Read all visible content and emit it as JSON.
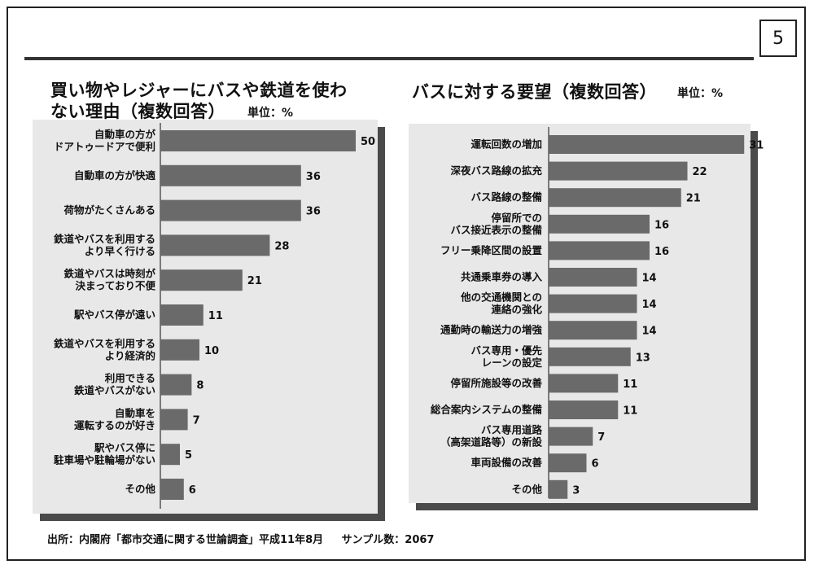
{
  "page_number": "5",
  "left_chart": {
    "title_line1": "買い物やレジャーにバスや鉄道を使わ",
    "title_line2": "ない理由（複数回答）",
    "unit": "単位：%"
  },
  "right_chart": {
    "title": "バスに対する要望（複数回答）",
    "unit": "単位：%"
  },
  "source": {
    "citation": "出所：内閣府「都市交通に関する世論調査」平成11年8月",
    "sample": "サンプル数：2067"
  },
  "chart_data": [
    {
      "type": "bar",
      "orientation": "horizontal",
      "title": "買い物やレジャーにバスや鉄道を使わない理由（複数回答）",
      "unit": "%",
      "categories": [
        [
          "自動車の方が",
          "ドアトゥードアで便利"
        ],
        [
          "自動車の方が快適"
        ],
        [
          "荷物がたくさんある"
        ],
        [
          "鉄道やバスを利用する",
          "より早く行ける"
        ],
        [
          "鉄道やバスは時刻が",
          "決まっており不便"
        ],
        [
          "駅やバス停が遠い"
        ],
        [
          "鉄道やバスを利用する",
          "より経済的"
        ],
        [
          "利用できる",
          "鉄道やバスがない"
        ],
        [
          "自動車を",
          "運転するのが好き"
        ],
        [
          "駅やバス停に",
          "駐車場や駐輪場がない"
        ],
        [
          "その他"
        ]
      ],
      "values": [
        50,
        36,
        36,
        28,
        21,
        11,
        10,
        8,
        7,
        5,
        6
      ]
    },
    {
      "type": "bar",
      "orientation": "horizontal",
      "title": "バスに対する要望（複数回答）",
      "unit": "%",
      "categories": [
        [
          "運転回数の増加"
        ],
        [
          "深夜バス路線の拡充"
        ],
        [
          "バス路線の整備"
        ],
        [
          "停留所での",
          "バス接近表示の整備"
        ],
        [
          "フリー乗降区間の設置"
        ],
        [
          "共通乗車券の導入"
        ],
        [
          "他の交通機関との",
          "連絡の強化"
        ],
        [
          "通勤時の輸送力の増強"
        ],
        [
          "バス専用・優先",
          "レーンの設定"
        ],
        [
          "停留所施設等の改善"
        ],
        [
          "総合案内システムの整備"
        ],
        [
          "バス専用道路",
          "（高架道路等）の新設"
        ],
        [
          "車両設備の改善"
        ],
        [
          "その他"
        ]
      ],
      "values": [
        31,
        22,
        21,
        16,
        16,
        14,
        14,
        14,
        13,
        11,
        11,
        7,
        6,
        3
      ]
    }
  ],
  "colors": {
    "bar": "#6a6a6a",
    "panel": "#e8e8e8",
    "shadow": "#4a4a4a"
  }
}
